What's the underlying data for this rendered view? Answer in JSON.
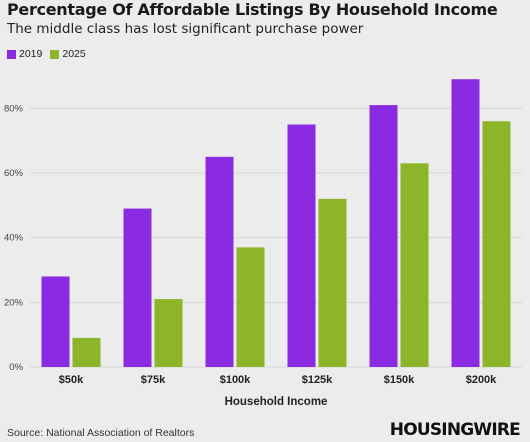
{
  "header": {
    "title": "Percentage Of Affordable Listings By Household Income",
    "subtitle": "The middle class has lost significant purchase power"
  },
  "footer": {
    "source": "Source: National Association of Realtors",
    "brand": "HOUSINGWIRE"
  },
  "colors": {
    "series_2019": "#8a2be2",
    "series_2025": "#8db52a",
    "grid": "#d6d6d6",
    "background": "#ececec"
  },
  "chart_data": {
    "type": "bar",
    "title": "Percentage Of Affordable Listings By Household Income",
    "subtitle": "The middle class has lost significant purchase power",
    "categories": [
      "$50k",
      "$75k",
      "$100k",
      "$125k",
      "$150k",
      "$200k"
    ],
    "series": [
      {
        "name": "2019",
        "values": [
          28,
          49,
          65,
          75,
          81,
          89
        ]
      },
      {
        "name": "2025",
        "values": [
          9,
          21,
          37,
          52,
          63,
          76
        ]
      }
    ],
    "xlabel": "Household Income",
    "ylabel": "",
    "ylim": [
      0,
      90
    ],
    "yticks": [
      0,
      20,
      40,
      60,
      80
    ],
    "ytick_labels": [
      "0%",
      "20%",
      "40%",
      "60%",
      "80%"
    ],
    "grid": true,
    "legend": "top-left"
  }
}
